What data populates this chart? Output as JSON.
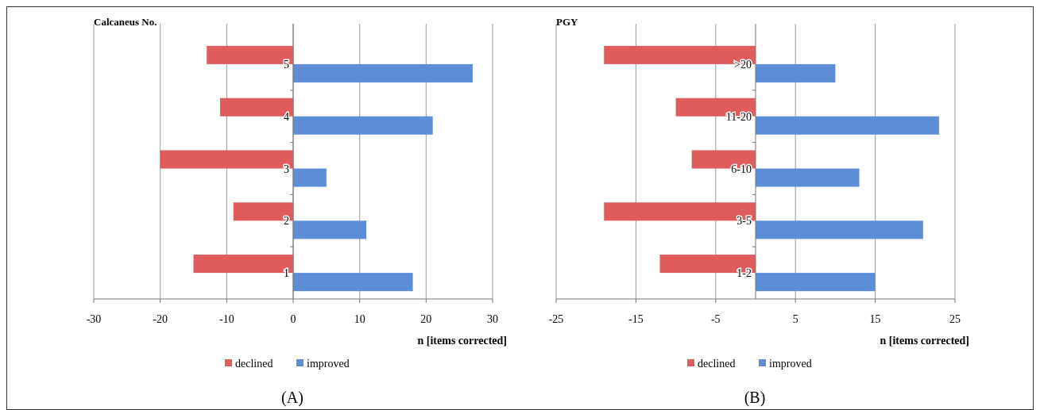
{
  "chart_data": [
    {
      "type": "bar",
      "orientation": "horizontal",
      "title": "Calcaneus  No.",
      "xlabel": "n [items  corrected]",
      "categories": [
        "5",
        "4",
        "3",
        "2",
        "1"
      ],
      "series": [
        {
          "name": "declined",
          "color": "#e05c5c",
          "values": [
            -13,
            -11,
            -20,
            -9,
            -15
          ]
        },
        {
          "name": "improved",
          "color": "#5b8ed6",
          "values": [
            27,
            21,
            5,
            11,
            18
          ]
        }
      ],
      "xlim": [
        -30,
        30
      ],
      "xticks": [
        -30,
        -20,
        -10,
        0,
        10,
        20,
        30
      ],
      "grid": "x",
      "legend": "bottom",
      "annotations": [
        "(A)"
      ]
    },
    {
      "type": "bar",
      "orientation": "horizontal",
      "title": "PGY",
      "xlabel": "n [items corrected]",
      "categories": [
        ">20",
        "11-20",
        "6-10",
        "3-5",
        "1-2"
      ],
      "series": [
        {
          "name": "declined",
          "color": "#e05c5c",
          "values": [
            -19,
            -10,
            -8,
            -19,
            -12
          ]
        },
        {
          "name": "improved",
          "color": "#5b8ed6",
          "values": [
            10,
            23,
            13,
            21,
            15
          ]
        }
      ],
      "xlim": [
        -25,
        25
      ],
      "xticks": [
        -25,
        -15,
        -5,
        5,
        15,
        25
      ],
      "grid": "x",
      "legend": "bottom",
      "annotations": [
        "(B)"
      ]
    }
  ]
}
